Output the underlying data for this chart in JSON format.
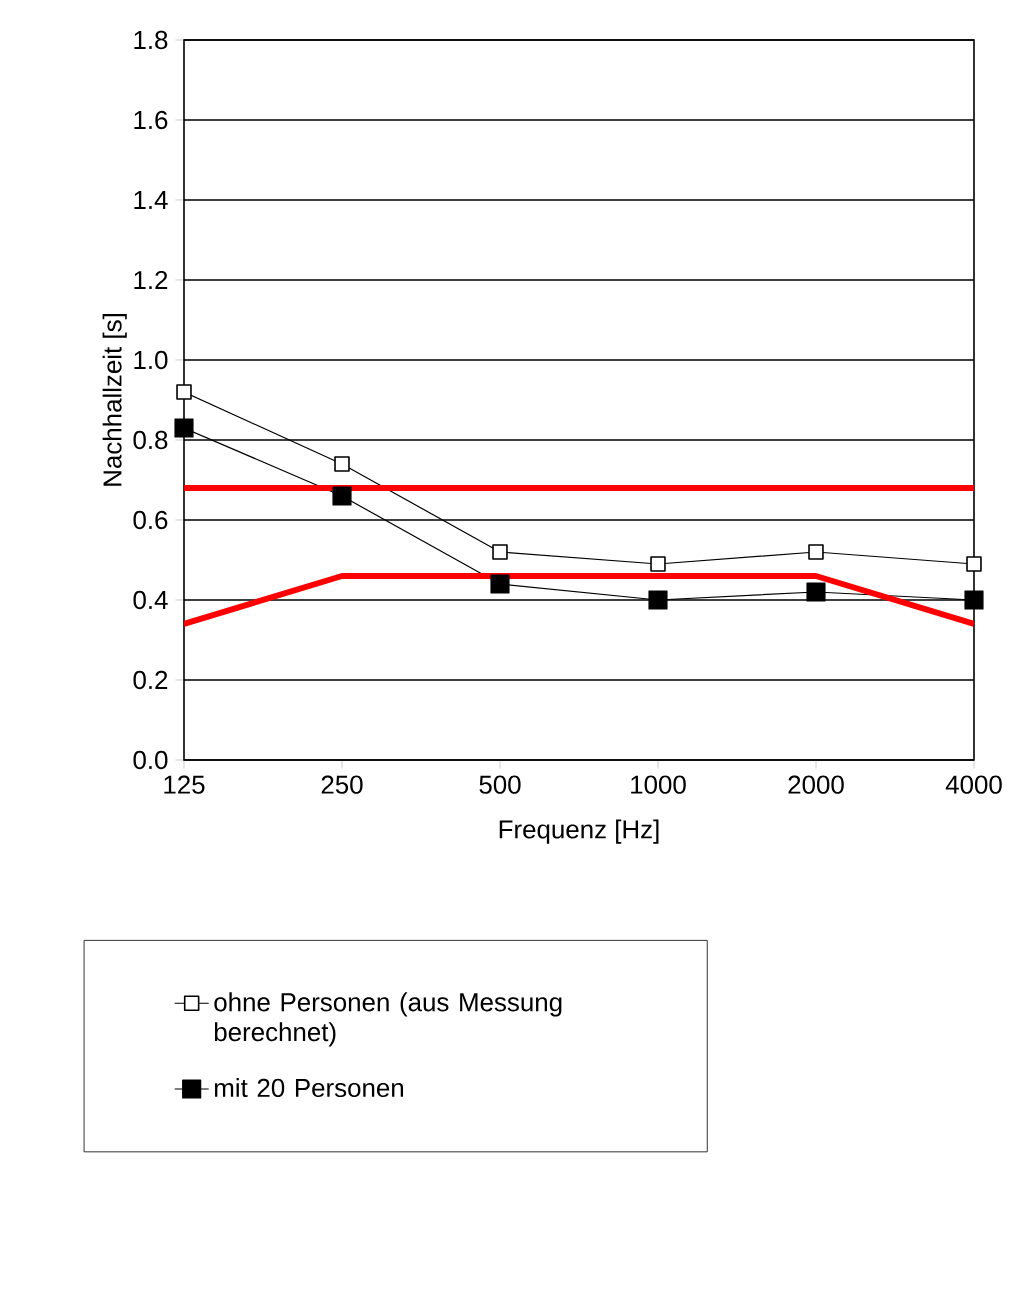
{
  "chart_data": {
    "type": "line",
    "xlabel": "Frequenz [Hz]",
    "ylabel": "Nachhallzeit [s]",
    "categories": [
      "125",
      "250",
      "500",
      "1000",
      "2000",
      "4000"
    ],
    "series": [
      {
        "name": "ohne Personen (aus Messung berechnet)",
        "color": "#000000",
        "marker": "square-open",
        "values": [
          0.92,
          0.74,
          0.52,
          0.49,
          0.52,
          0.49
        ]
      },
      {
        "name": "mit 20 Personen",
        "color": "#000000",
        "marker": "square",
        "values": [
          0.83,
          0.66,
          0.44,
          0.4,
          0.42,
          0.4
        ]
      },
      {
        "color": "#ff0000",
        "marker": "none",
        "values": [
          0.68,
          0.68,
          0.68,
          0.68,
          0.68,
          0.68
        ]
      },
      {
        "color": "#ff0000",
        "marker": "none",
        "values": [
          0.34,
          0.46,
          0.46,
          0.46,
          0.46,
          0.34
        ]
      }
    ],
    "ylim": [
      0,
      1.8
    ],
    "yticks": [
      {
        "value": 0,
        "label": "0.0"
      },
      0.2,
      0.4,
      0.6,
      0.8,
      {
        "value": 1.0,
        "label": "1.0"
      },
      1.2,
      1.4,
      1.6,
      1.8
    ],
    "grid": "y",
    "legend": "bottom"
  }
}
